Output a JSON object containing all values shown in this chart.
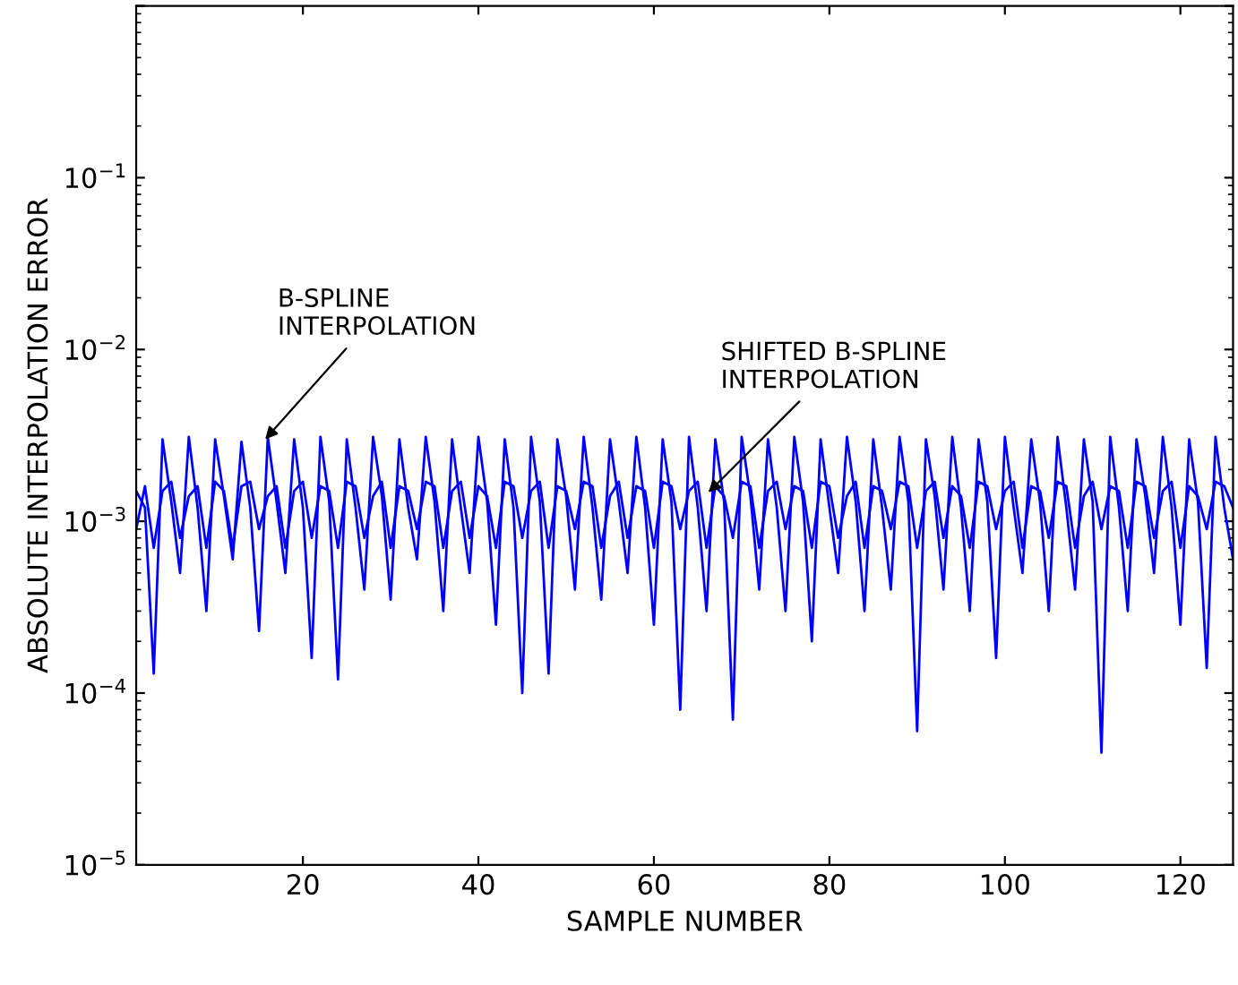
{
  "chart_data": {
    "type": "line",
    "xlabel": "SAMPLE NUMBER",
    "ylabel": "ABSOLUTE INTERPOLATION ERROR",
    "x": [
      1,
      2,
      3,
      4,
      5,
      6,
      7,
      8,
      9,
      10,
      11,
      12,
      13,
      14,
      15,
      16,
      17,
      18,
      19,
      20,
      21,
      22,
      23,
      24,
      25,
      26,
      27,
      28,
      29,
      30,
      31,
      32,
      33,
      34,
      35,
      36,
      37,
      38,
      39,
      40,
      41,
      42,
      43,
      44,
      45,
      46,
      47,
      48,
      49,
      50,
      51,
      52,
      53,
      54,
      55,
      56,
      57,
      58,
      59,
      60,
      61,
      62,
      63,
      64,
      65,
      66,
      67,
      68,
      69,
      70,
      71,
      72,
      73,
      74,
      75,
      76,
      77,
      78,
      79,
      80,
      81,
      82,
      83,
      84,
      85,
      86,
      87,
      88,
      89,
      90,
      91,
      92,
      93,
      94,
      95,
      96,
      97,
      98,
      99,
      100,
      101,
      102,
      103,
      104,
      105,
      106,
      107,
      108,
      109,
      110,
      111,
      112,
      113,
      114,
      115,
      116,
      117,
      118,
      119,
      120,
      121,
      122,
      123,
      124,
      125,
      126
    ],
    "series": [
      {
        "color": "#0000ff",
        "values": [
          0.0015,
          0.0012,
          0.00013,
          0.003,
          0.0013,
          0.0005,
          0.0031,
          0.0012,
          0.0003,
          0.003,
          0.0014,
          0.0006,
          0.0029,
          0.0012,
          0.00023,
          0.0031,
          0.0013,
          0.0005,
          0.003,
          0.0012,
          0.00016,
          0.0031,
          0.0013,
          0.00012,
          0.003,
          0.0012,
          0.0004,
          0.0031,
          0.0014,
          0.00035,
          0.003,
          0.0012,
          0.0006,
          0.0031,
          0.0013,
          0.0003,
          0.003,
          0.0012,
          0.0005,
          0.0031,
          0.0013,
          0.00025,
          0.003,
          0.0012,
          0.0001,
          0.0031,
          0.0013,
          0.00013,
          0.003,
          0.0014,
          0.0004,
          0.0031,
          0.0012,
          0.00035,
          0.003,
          0.0013,
          0.0005,
          0.0031,
          0.0012,
          0.00025,
          0.003,
          0.0013,
          8e-05,
          0.0031,
          0.0012,
          0.0003,
          0.003,
          0.0013,
          7e-05,
          0.0031,
          0.0014,
          0.0004,
          0.003,
          0.0012,
          0.0003,
          0.0031,
          0.0013,
          0.0002,
          0.003,
          0.0012,
          0.0005,
          0.0031,
          0.0013,
          0.0003,
          0.003,
          0.0012,
          0.0004,
          0.0031,
          0.0013,
          6e-05,
          0.003,
          0.0014,
          0.0004,
          0.0031,
          0.0012,
          0.0003,
          0.003,
          0.0013,
          0.00016,
          0.0031,
          0.0012,
          0.0005,
          0.003,
          0.0013,
          0.0003,
          0.0031,
          0.0012,
          0.0004,
          0.003,
          0.0013,
          4.5e-05,
          0.0031,
          0.0012,
          0.0003,
          0.003,
          0.0014,
          0.0005,
          0.0031,
          0.0012,
          0.00025,
          0.003,
          0.0013,
          0.00014,
          0.0031,
          0.0012,
          0.0006
        ]
      },
      {
        "color": "#0000ff",
        "values": [
          0.0009,
          0.0016,
          0.0007,
          0.0015,
          0.0017,
          0.0008,
          0.0014,
          0.0016,
          0.0007,
          0.0017,
          0.0015,
          0.0007,
          0.0016,
          0.0017,
          0.0009,
          0.0014,
          0.0016,
          0.0007,
          0.0015,
          0.0017,
          0.0008,
          0.0016,
          0.0015,
          0.0007,
          0.0017,
          0.0016,
          0.0008,
          0.0014,
          0.0017,
          0.0007,
          0.0016,
          0.0015,
          0.0009,
          0.0017,
          0.0016,
          0.0007,
          0.0015,
          0.0017,
          0.0008,
          0.0016,
          0.0014,
          0.0007,
          0.0017,
          0.0016,
          0.0008,
          0.0015,
          0.0017,
          0.0007,
          0.0016,
          0.0015,
          0.0009,
          0.0017,
          0.0016,
          0.0007,
          0.0014,
          0.0017,
          0.0008,
          0.0016,
          0.0015,
          0.0007,
          0.0017,
          0.0016,
          0.0009,
          0.0015,
          0.0017,
          0.0007,
          0.0016,
          0.0014,
          0.0008,
          0.0017,
          0.0016,
          0.0007,
          0.0015,
          0.0017,
          0.0009,
          0.0016,
          0.0015,
          0.0007,
          0.0017,
          0.0016,
          0.0008,
          0.0014,
          0.0017,
          0.0007,
          0.0016,
          0.0015,
          0.0009,
          0.0017,
          0.0016,
          0.0007,
          0.0015,
          0.0017,
          0.0008,
          0.0016,
          0.0014,
          0.0007,
          0.0017,
          0.0016,
          0.0009,
          0.0015,
          0.0017,
          0.0007,
          0.0016,
          0.0015,
          0.0008,
          0.0017,
          0.0016,
          0.0007,
          0.0014,
          0.0017,
          0.0009,
          0.0016,
          0.0015,
          0.0007,
          0.0017,
          0.0016,
          0.0008,
          0.0015,
          0.0017,
          0.0007,
          0.0016,
          0.0014,
          0.0009,
          0.0017,
          0.0016,
          0.0012
        ]
      }
    ],
    "log": "y",
    "xlim": [
      1,
      126
    ],
    "xticks": [
      20,
      40,
      60,
      80,
      100,
      120
    ],
    "ylim": [
      1e-05,
      1
    ],
    "yticks": [
      {
        "value": 1e-05,
        "label": "10$^{−5}$"
      },
      {
        "value": 0.0001,
        "label": "10$^{−4}$"
      },
      {
        "value": 0.001,
        "label": "10$^{−3}$"
      },
      {
        "value": 0.01,
        "label": "10$^{−2}$"
      },
      {
        "value": 0.1,
        "label": "10$^{−1}$"
      },
      {
        "value": 1,
        "label": null
      }
    ],
    "marker": "none",
    "line_style": "solid",
    "grid": false,
    "legend": false,
    "annotations": [
      {
        "text": "B-SPLINE\nINTERPOLATION",
        "x": 15.7,
        "y": 0.003
      },
      {
        "text": "SHIFTED B-SPLINE\nINTERPOLATION",
        "x": 66.2,
        "y": 0.00147
      }
    ]
  }
}
